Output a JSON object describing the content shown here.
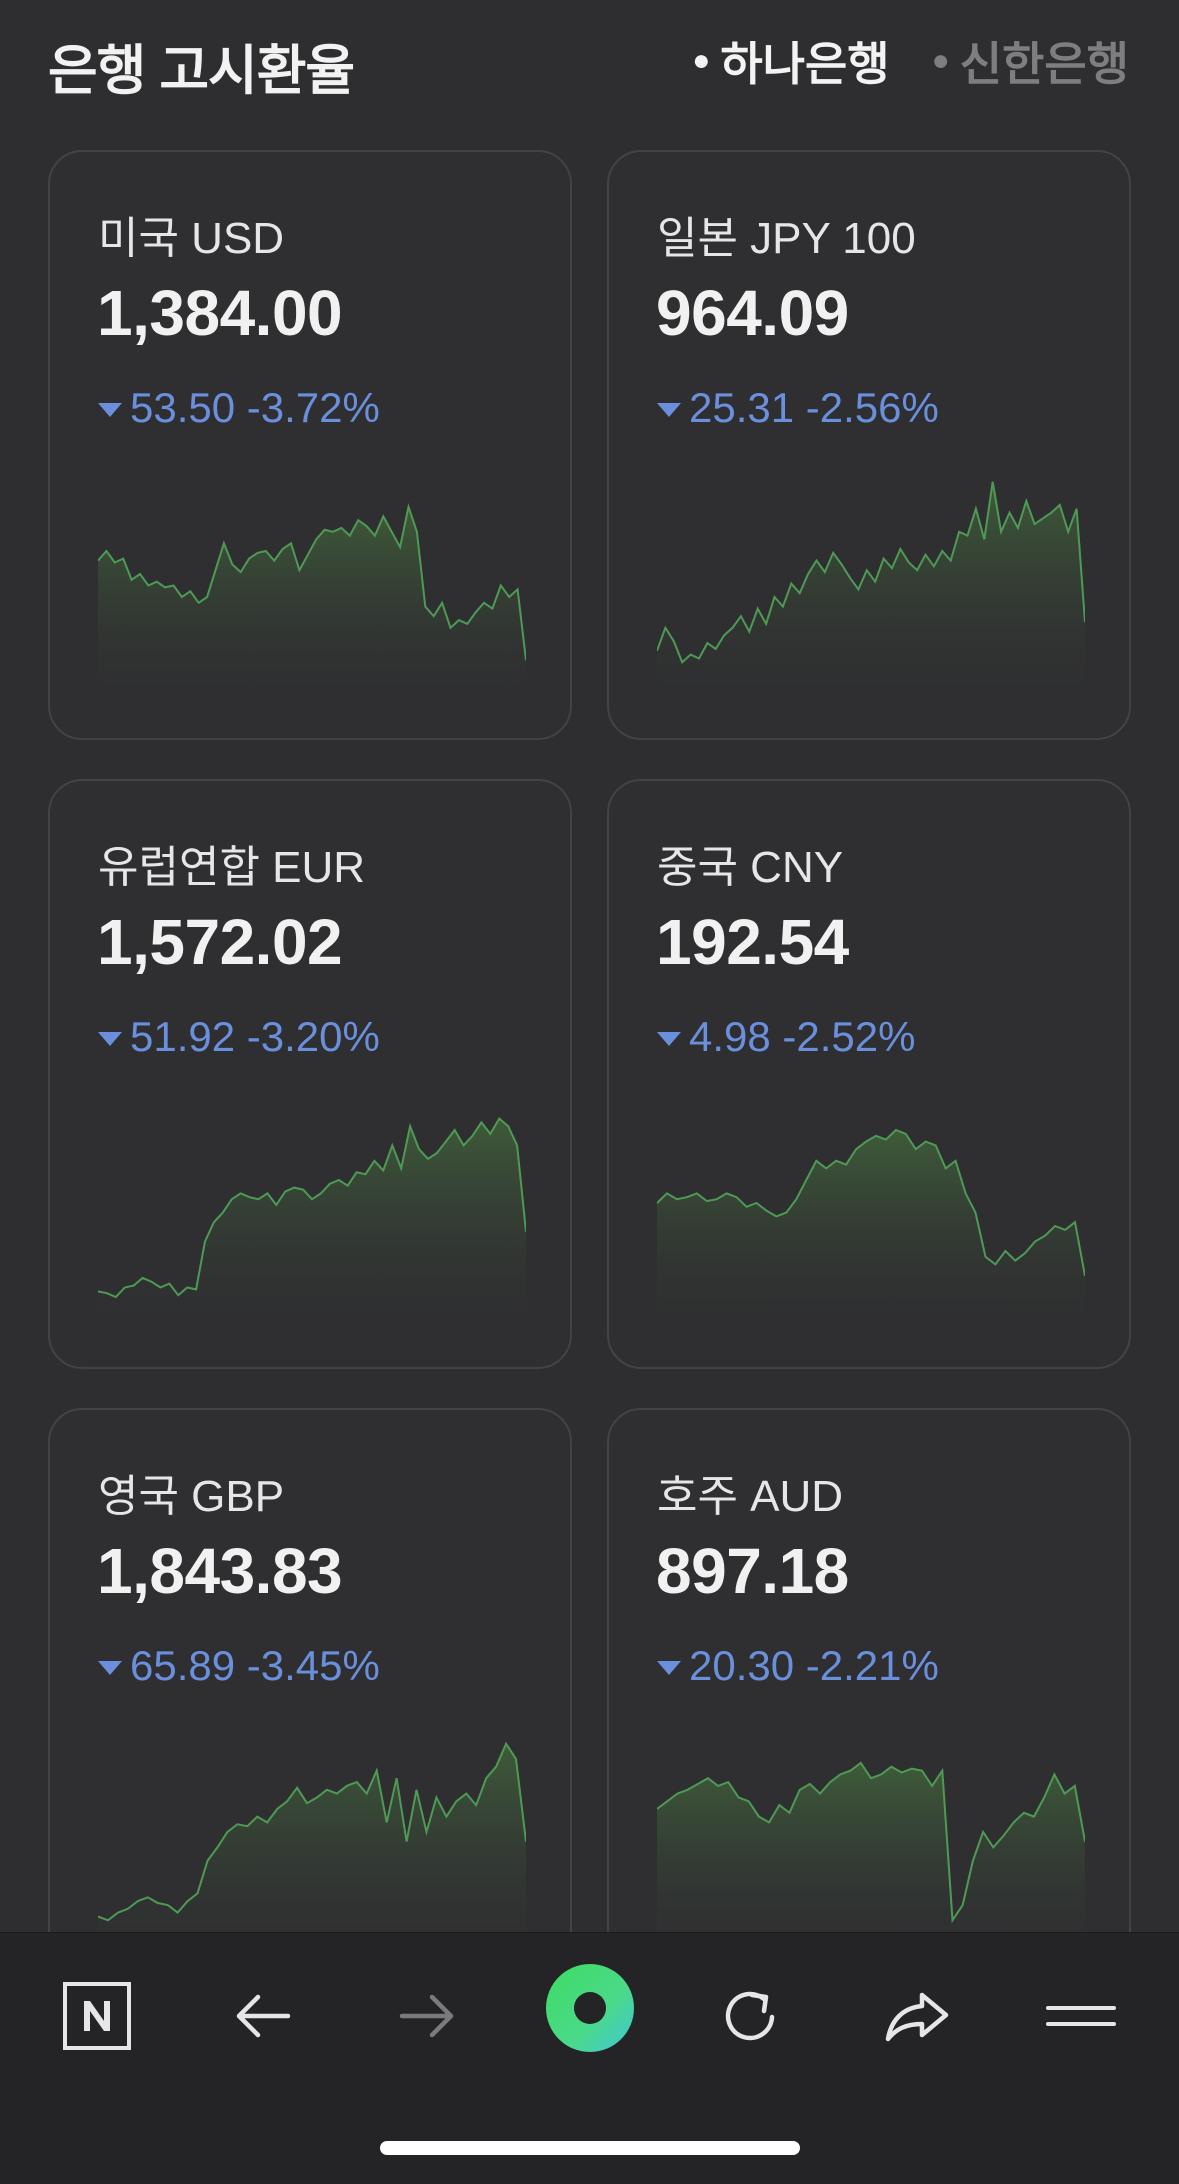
{
  "header": {
    "title": "은행 고시환율",
    "banks": [
      {
        "label": "하나은행",
        "active": true
      },
      {
        "label": "신한은행",
        "active": false
      }
    ]
  },
  "cards": [
    {
      "name": "미국 USD",
      "rate": "1,384.00",
      "change": "53.50 -3.72%",
      "direction": "down",
      "spark": [
        0.57,
        0.62,
        0.56,
        0.58,
        0.47,
        0.5,
        0.44,
        0.46,
        0.43,
        0.44,
        0.38,
        0.41,
        0.35,
        0.38,
        0.52,
        0.66,
        0.55,
        0.51,
        0.58,
        0.61,
        0.62,
        0.57,
        0.63,
        0.66,
        0.52,
        0.6,
        0.68,
        0.73,
        0.72,
        0.74,
        0.7,
        0.78,
        0.75,
        0.7,
        0.8,
        0.72,
        0.64,
        0.85,
        0.72,
        0.33,
        0.28,
        0.35,
        0.22,
        0.26,
        0.24,
        0.3,
        0.35,
        0.32,
        0.44,
        0.38,
        0.42,
        0.05
      ]
    },
    {
      "name": "일본 JPY 100",
      "rate": "964.09",
      "change": "25.31 -2.56%",
      "direction": "down",
      "spark": [
        0.1,
        0.22,
        0.15,
        0.04,
        0.08,
        0.06,
        0.14,
        0.11,
        0.18,
        0.22,
        0.28,
        0.2,
        0.32,
        0.24,
        0.38,
        0.33,
        0.45,
        0.4,
        0.5,
        0.57,
        0.51,
        0.61,
        0.55,
        0.48,
        0.42,
        0.52,
        0.46,
        0.58,
        0.53,
        0.63,
        0.56,
        0.52,
        0.6,
        0.54,
        0.62,
        0.57,
        0.72,
        0.7,
        0.84,
        0.68,
        0.98,
        0.72,
        0.82,
        0.74,
        0.88,
        0.76,
        0.79,
        0.82,
        0.86,
        0.72,
        0.84,
        0.25
      ]
    },
    {
      "name": "유럽연합 EUR",
      "rate": "1,572.02",
      "change": "51.92 -3.20%",
      "direction": "down",
      "spark": [
        0.04,
        0.03,
        0.01,
        0.06,
        0.07,
        0.11,
        0.09,
        0.06,
        0.08,
        0.02,
        0.06,
        0.05,
        0.3,
        0.4,
        0.45,
        0.52,
        0.55,
        0.53,
        0.52,
        0.55,
        0.49,
        0.56,
        0.58,
        0.57,
        0.52,
        0.55,
        0.6,
        0.62,
        0.59,
        0.66,
        0.65,
        0.72,
        0.67,
        0.8,
        0.68,
        0.9,
        0.78,
        0.73,
        0.76,
        0.82,
        0.88,
        0.8,
        0.85,
        0.92,
        0.86,
        0.94,
        0.9,
        0.8,
        0.35
      ]
    },
    {
      "name": "중국 CNY",
      "rate": "192.54",
      "change": "4.98 -2.52%",
      "direction": "down",
      "spark": [
        0.5,
        0.55,
        0.52,
        0.53,
        0.55,
        0.51,
        0.52,
        0.55,
        0.53,
        0.48,
        0.5,
        0.46,
        0.43,
        0.45,
        0.52,
        0.62,
        0.72,
        0.68,
        0.72,
        0.7,
        0.78,
        0.82,
        0.85,
        0.83,
        0.88,
        0.86,
        0.78,
        0.82,
        0.8,
        0.68,
        0.72,
        0.55,
        0.45,
        0.22,
        0.18,
        0.25,
        0.2,
        0.24,
        0.3,
        0.33,
        0.38,
        0.36,
        0.4,
        0.12
      ]
    },
    {
      "name": "영국 GBP",
      "rate": "1,843.83",
      "change": "65.89 -3.45%",
      "direction": "down",
      "spark": [
        0.06,
        0.04,
        0.08,
        0.1,
        0.14,
        0.16,
        0.13,
        0.12,
        0.08,
        0.14,
        0.18,
        0.35,
        0.42,
        0.5,
        0.54,
        0.53,
        0.58,
        0.55,
        0.62,
        0.66,
        0.73,
        0.65,
        0.68,
        0.72,
        0.7,
        0.74,
        0.76,
        0.7,
        0.82,
        0.55,
        0.78,
        0.45,
        0.72,
        0.5,
        0.68,
        0.58,
        0.66,
        0.7,
        0.64,
        0.78,
        0.84,
        0.96,
        0.88,
        0.45
      ]
    },
    {
      "name": "호주 AUD",
      "rate": "897.18",
      "change": "20.30 -2.21%",
      "direction": "down",
      "spark": [
        0.62,
        0.66,
        0.7,
        0.72,
        0.75,
        0.78,
        0.74,
        0.76,
        0.68,
        0.66,
        0.58,
        0.55,
        0.64,
        0.6,
        0.72,
        0.75,
        0.7,
        0.76,
        0.8,
        0.82,
        0.86,
        0.78,
        0.8,
        0.84,
        0.81,
        0.83,
        0.82,
        0.74,
        0.82,
        0.04,
        0.12,
        0.35,
        0.5,
        0.42,
        0.48,
        0.55,
        0.6,
        0.58,
        0.68,
        0.8,
        0.7,
        0.74,
        0.45
      ]
    }
  ],
  "toolbar": {
    "buttons": [
      {
        "name": "naver-home-button",
        "icon": "naver-n-icon"
      },
      {
        "name": "back-button",
        "icon": "arrow-left-icon"
      },
      {
        "name": "forward-button",
        "icon": "arrow-right-icon"
      },
      {
        "name": "green-dot-button",
        "icon": "green-dot-icon"
      },
      {
        "name": "reload-button",
        "icon": "reload-icon"
      },
      {
        "name": "share-button",
        "icon": "share-icon"
      },
      {
        "name": "menu-button",
        "icon": "menu-icon"
      }
    ]
  }
}
